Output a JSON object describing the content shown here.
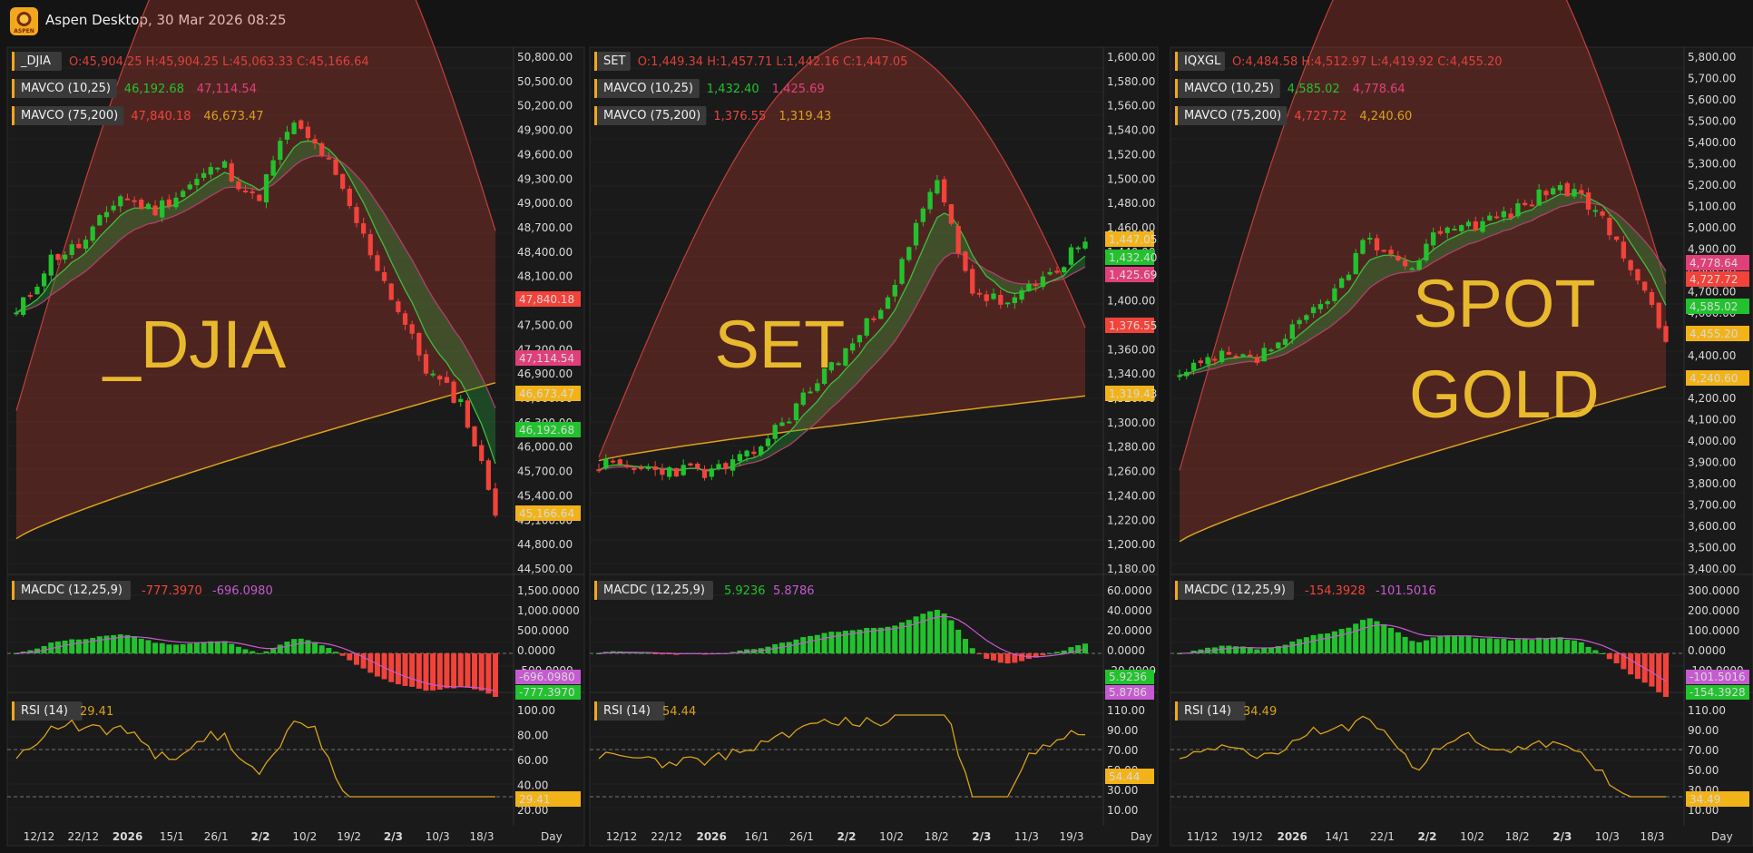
{
  "app": {
    "title": "Aspen Desktop, 30 Mar 2026 08:25",
    "logo_text": "ASPEN"
  },
  "colors": {
    "up": "#22c22e",
    "down": "#f2433a",
    "gold": "#d9a21b",
    "pink": "#e0407a",
    "violet": "#c55bd0"
  },
  "panels": [
    {
      "symbol": "_DJIA",
      "ohlc": "O:45,904.25 H:45,904.25 L:45,063.33 C:45,166.64",
      "watermark": [
        "_DJIA"
      ],
      "ma1": {
        "label": "MAVCO (10,25)",
        "v1": "46,192.68",
        "v2": "47,114.54"
      },
      "ma2": {
        "label": "MAVCO (75,200)",
        "v1": "47,840.18",
        "v2": "46,673.47"
      },
      "price_ticks": [
        "50,800.00",
        "50,500.00",
        "50,200.00",
        "49,900.00",
        "49,600.00",
        "49,300.00",
        "49,000.00",
        "48,700.00",
        "48,400.00",
        "48,100.00",
        "47,800.00",
        "47,500.00",
        "47,200.00",
        "46,900.00",
        "46,600.00",
        "46,300.00",
        "46,000.00",
        "45,700.00",
        "45,400.00",
        "45,100.00",
        "44,800.00",
        "44,500.00"
      ],
      "price_tags": [
        {
          "text": "47,840.18",
          "bg": "#f2433a"
        },
        {
          "text": "47,114.54",
          "bg": "#e0407a"
        },
        {
          "text": "46,673.47",
          "bg": "#f2b318"
        },
        {
          "text": "46,192.68",
          "bg": "#22c22e"
        },
        {
          "text": "45,166.64",
          "bg": "#f2b318"
        }
      ],
      "macd": {
        "label": "MACDC (12,25,9)",
        "v1": "-777.3970",
        "v2": "-696.0980",
        "ticks": [
          "1,500.0000",
          "1,000.0000",
          "500.0000",
          "0.0000",
          "-500.0000"
        ],
        "tags": [
          {
            "text": "-696.0980",
            "bg": "#c55bd0"
          },
          {
            "text": "-777.3970",
            "bg": "#22c22e"
          }
        ]
      },
      "rsi": {
        "label": "RSI (14)",
        "value": "29.41",
        "ticks": [
          "100.00",
          "80.00",
          "60.00",
          "40.00",
          "20.00"
        ],
        "tag": "29.41"
      },
      "time_ticks": [
        "12/12",
        "22/12",
        "2026",
        "15/1",
        "26/1",
        "2/2",
        "10/2",
        "19/2",
        "2/3",
        "10/3",
        "18/3"
      ],
      "period": "Day"
    },
    {
      "symbol": "SET",
      "ohlc": "O:1,449.34 H:1,457.71 L:1,442.16 C:1,447.05",
      "watermark": [
        "SET"
      ],
      "ma1": {
        "label": "MAVCO (10,25)",
        "v1": "1,432.40",
        "v2": "1,425.69"
      },
      "ma2": {
        "label": "MAVCO (75,200)",
        "v1": "1,376.55",
        "v2": "1,319.43"
      },
      "price_ticks": [
        "1,600.00",
        "1,580.00",
        "1,560.00",
        "1,540.00",
        "1,520.00",
        "1,500.00",
        "1,480.00",
        "1,460.00",
        "1,440.00",
        "1,420.00",
        "1,400.00",
        "1,380.00",
        "1,360.00",
        "1,340.00",
        "1,320.00",
        "1,300.00",
        "1,280.00",
        "1,260.00",
        "1,240.00",
        "1,220.00",
        "1,200.00",
        "1,180.00"
      ],
      "price_tags": [
        {
          "text": "1,447.05",
          "bg": "#f2b318"
        },
        {
          "text": "1,432.40",
          "bg": "#22c22e"
        },
        {
          "text": "1,425.69",
          "bg": "#e0407a"
        },
        {
          "text": "1,376.55",
          "bg": "#f2433a"
        },
        {
          "text": "1,319.43",
          "bg": "#f2b318"
        }
      ],
      "macd": {
        "label": "MACDC (12,25,9)",
        "v1": "5.9236",
        "v2": "5.8786",
        "ticks": [
          "60.0000",
          "40.0000",
          "20.0000",
          "0.0000",
          "-20.0000"
        ],
        "tags": [
          {
            "text": "5.9236",
            "bg": "#22c22e"
          },
          {
            "text": "5.8786",
            "bg": "#c55bd0"
          }
        ]
      },
      "rsi": {
        "label": "RSI (14)",
        "value": "54.44",
        "ticks": [
          "110.00",
          "90.00",
          "70.00",
          "50.00",
          "30.00",
          "10.00"
        ],
        "tag": "54.44"
      },
      "time_ticks": [
        "12/12",
        "22/12",
        "2026",
        "16/1",
        "26/1",
        "2/2",
        "10/2",
        "18/2",
        "2/3",
        "11/3",
        "19/3"
      ],
      "period": "Day"
    },
    {
      "symbol": "IQXGL",
      "ohlc": "O:4,484.58 H:4,512.97 L:4,419.92 C:4,455.20",
      "watermark": [
        "SPOT",
        "GOLD"
      ],
      "ma1": {
        "label": "MAVCO (10,25)",
        "v1": "4,585.02",
        "v2": "4,778.64"
      },
      "ma2": {
        "label": "MAVCO (75,200)",
        "v1": "4,727.72",
        "v2": "4,240.60"
      },
      "price_ticks": [
        "5,800.00",
        "5,700.00",
        "5,600.00",
        "5,500.00",
        "5,400.00",
        "5,300.00",
        "5,200.00",
        "5,100.00",
        "5,000.00",
        "4,900.00",
        "4,800.00",
        "4,700.00",
        "4,600.00",
        "4,500.00",
        "4,400.00",
        "4,300.00",
        "4,200.00",
        "4,100.00",
        "4,000.00",
        "3,900.00",
        "3,800.00",
        "3,700.00",
        "3,600.00",
        "3,500.00",
        "3,400.00"
      ],
      "price_tags": [
        {
          "text": "4,778.64",
          "bg": "#e0407a"
        },
        {
          "text": "4,727.72",
          "bg": "#f2433a"
        },
        {
          "text": "4,585.02",
          "bg": "#22c22e"
        },
        {
          "text": "4,455.20",
          "bg": "#f2b318"
        },
        {
          "text": "4,240.60",
          "bg": "#f2b318"
        }
      ],
      "macd": {
        "label": "MACDC (12,25,9)",
        "v1": "-154.3928",
        "v2": "-101.5016",
        "ticks": [
          "300.0000",
          "200.0000",
          "100.0000",
          "0.0000",
          "-100.0000"
        ],
        "tags": [
          {
            "text": "-101.5016",
            "bg": "#c55bd0"
          },
          {
            "text": "-154.3928",
            "bg": "#22c22e"
          }
        ]
      },
      "rsi": {
        "label": "RSI (14)",
        "value": "34.49",
        "ticks": [
          "110.00",
          "90.00",
          "70.00",
          "50.00",
          "30.00",
          "10.00"
        ],
        "tag": "34.49"
      },
      "time_ticks": [
        "11/12",
        "19/12",
        "2026",
        "14/1",
        "22/1",
        "2/2",
        "10/2",
        "18/2",
        "2/3",
        "10/3",
        "18/3"
      ],
      "period": "Day"
    }
  ],
  "chart_data": [
    {
      "type": "line",
      "title": "_DJIA",
      "ylim": [
        44500,
        50800
      ],
      "ylabel": "",
      "xlabel": "",
      "x": [
        "12/12",
        "22/12",
        "2026",
        "15/1",
        "26/1",
        "2/2",
        "10/2",
        "19/2",
        "2/3",
        "10/3",
        "18/3"
      ],
      "series": [
        {
          "name": "_DJIA",
          "values": [
            47600,
            48400,
            48600,
            49300,
            48800,
            49200,
            50100,
            49400,
            48300,
            46900,
            45170
          ]
        }
      ]
    },
    {
      "type": "line",
      "title": "SET",
      "ylim": [
        1180,
        1600
      ],
      "ylabel": "",
      "xlabel": "",
      "x": [
        "12/12",
        "22/12",
        "2026",
        "16/1",
        "26/1",
        "2/2",
        "10/2",
        "18/2",
        "2/3",
        "11/3",
        "19/3"
      ],
      "series": [
        {
          "name": "SET",
          "values": [
            1265,
            1258,
            1262,
            1300,
            1330,
            1370,
            1430,
            1495,
            1385,
            1420,
            1447
          ]
        }
      ]
    },
    {
      "type": "line",
      "title": "IQXGL",
      "ylim": [
        3400,
        5800
      ],
      "ylabel": "",
      "xlabel": "",
      "x": [
        "11/12",
        "19/12",
        "2026",
        "14/1",
        "22/1",
        "2/2",
        "10/2",
        "18/2",
        "2/3",
        "10/3",
        "18/3"
      ],
      "series": [
        {
          "name": "IQXGL",
          "values": [
            4300,
            4420,
            4380,
            4600,
            5000,
            4750,
            5000,
            5050,
            5300,
            5000,
            4455
          ]
        }
      ]
    }
  ]
}
